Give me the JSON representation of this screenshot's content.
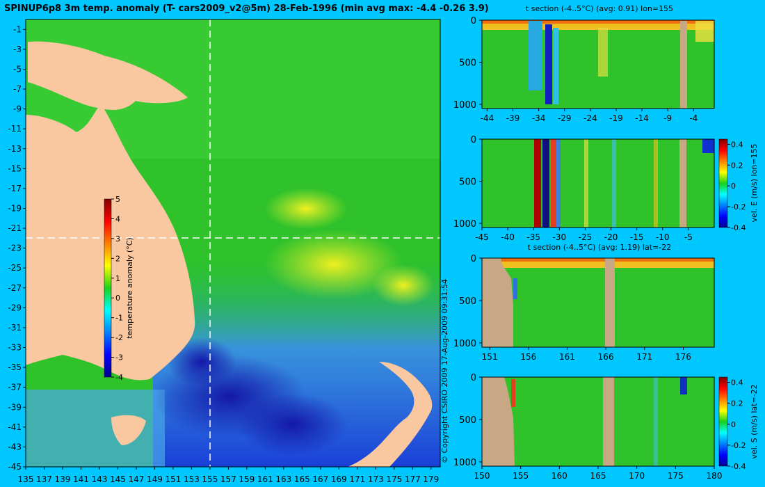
{
  "map": {
    "title": "SPINUP6p8 3m temp. anomaly (T- cars2009_v2@5m) 28-Feb-1996 (min avg max: -4.4 -0.26 3.9)",
    "colorbar_label": "temperature anomaly (°C)",
    "colorbar_ticks": [
      "5",
      "4",
      "3",
      "2",
      "1",
      "0",
      "-1",
      "-2",
      "-3",
      "-4"
    ],
    "lat_ticks": [
      "-1",
      "-3",
      "-5",
      "-7",
      "-9",
      "-11",
      "-13",
      "-15",
      "-17",
      "-19",
      "-21",
      "-23",
      "-25",
      "-27",
      "-29",
      "-31",
      "-33",
      "-35",
      "-37",
      "-39",
      "-41",
      "-43",
      "-45"
    ],
    "lon_ticks": [
      "135",
      "137",
      "139",
      "141",
      "143",
      "145",
      "147",
      "149",
      "151",
      "153",
      "155",
      "157",
      "159",
      "161",
      "163",
      "165",
      "167",
      "169",
      "171",
      "173",
      "175",
      "177",
      "179"
    ],
    "copyright": "© Copyright CSIRO 2009   17-Aug-2009 09:31:54"
  },
  "panels": [
    {
      "title": "t section (-4..5°C) (avg: 0.91) lon=155",
      "y_ticks": [
        "0",
        "500",
        "1000"
      ],
      "x_ticks": [
        "-44",
        "-39",
        "-34",
        "-29",
        "-24",
        "-19",
        "-14",
        "-9",
        "-4"
      ],
      "colorbar_label": "",
      "colorbar_ticks": []
    },
    {
      "title": "",
      "y_ticks": [
        "0",
        "500",
        "1000"
      ],
      "x_ticks": [
        "-45",
        "-40",
        "-35",
        "-30",
        "-25",
        "-20",
        "-15",
        "-10",
        "-5"
      ],
      "colorbar_label": "vel. E (m/s) lon=155",
      "colorbar_ticks": [
        "0.4",
        "0.2",
        "0",
        "-0.2",
        "-0.4"
      ]
    },
    {
      "title": "t section (-4..5°C) (avg: 1.19) lat=-22",
      "y_ticks": [
        "0",
        "500",
        "1000"
      ],
      "x_ticks": [
        "151",
        "156",
        "161",
        "166",
        "171",
        "176"
      ],
      "colorbar_label": "",
      "colorbar_ticks": []
    },
    {
      "title": "",
      "y_ticks": [
        "0",
        "500",
        "1000"
      ],
      "x_ticks": [
        "150",
        "155",
        "160",
        "165",
        "170",
        "175",
        "180"
      ],
      "colorbar_label": "vel. S (m/s) lat=-22",
      "colorbar_ticks": [
        "0.4",
        "0.2",
        "0",
        "-0.2",
        "-0.4"
      ]
    }
  ],
  "chart_data": [
    {
      "type": "heatmap",
      "title": "SPINUP6p8 3m temp. anomaly (T- cars2009_v2@5m) 28-Feb-1996 (min avg max: -4.4 -0.26 3.9)",
      "xlabel": "",
      "ylabel": "",
      "xlim": [
        135,
        180
      ],
      "ylim": [
        -45,
        0
      ],
      "colorbar": {
        "label": "temperature anomaly (°C)",
        "range": [
          -4,
          5
        ]
      },
      "crosshair": {
        "lon": 155,
        "lat": -22
      },
      "stats": {
        "min": -4.4,
        "avg": -0.26,
        "max": 3.9
      }
    },
    {
      "type": "heatmap",
      "title": "t section (-4..5°C) (avg: 0.91) lon=155",
      "xlim": [
        -45,
        0
      ],
      "ylim": [
        1050,
        0
      ],
      "colorbar": {
        "range": [
          -4,
          5
        ]
      },
      "avg": 0.91
    },
    {
      "type": "heatmap",
      "title": "",
      "xlim": [
        -45,
        0
      ],
      "ylim": [
        1050,
        0
      ],
      "colorbar": {
        "label": "vel. E (m/s) lon=155",
        "range": [
          -0.4,
          0.45
        ]
      }
    },
    {
      "type": "heatmap",
      "title": "t section (-4..5°C) (avg: 1.19) lat=-22",
      "xlim": [
        150,
        180
      ],
      "ylim": [
        1050,
        0
      ],
      "colorbar": {
        "range": [
          -4,
          5
        ]
      },
      "avg": 1.19
    },
    {
      "type": "heatmap",
      "title": "",
      "xlim": [
        150,
        180
      ],
      "ylim": [
        1050,
        0
      ],
      "colorbar": {
        "label": "vel. S (m/s) lat=-22",
        "range": [
          -0.4,
          0.45
        ]
      }
    }
  ]
}
